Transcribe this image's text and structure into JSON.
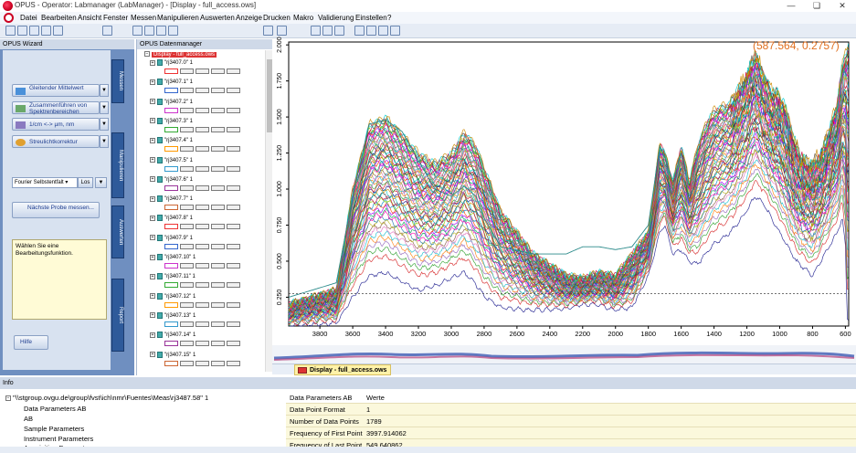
{
  "window": {
    "title": "OPUS - Operator: Labmanager  (LabManager) - [Display - full_access.ows]"
  },
  "menubar": {
    "items": [
      "Datei",
      "Bearbeiten",
      "Ansicht",
      "Fenster",
      "Messen",
      "Manipulieren",
      "Auswerten",
      "Anzeige",
      "Drucken",
      "Makro",
      "Validierung",
      "Einstellen",
      "?"
    ]
  },
  "wizard": {
    "title": "OPUS Wizard",
    "buttons": [
      {
        "label": "Gleitender Mittelwert"
      },
      {
        "label": "Zusammenführen von Spektrenbereichen"
      },
      {
        "label": "1/cm <-> µm, nm"
      },
      {
        "label": "Streulichtkorrektur"
      }
    ],
    "select_value": "Fourier Selbstentfalt",
    "los_label": "Los",
    "next_label": "Nächste Probe messen...",
    "info_text": "Wählen Sie eine Bearbeitungsfunktion.",
    "help_label": "Hilfe",
    "tabs": [
      "Messen",
      "Manipulieren",
      "Auswerten",
      "Report"
    ]
  },
  "filemgr": {
    "title": "OPUS Datenmanager",
    "root": "Display - full_access.ows",
    "items": [
      "\"rj3407.0\" 1",
      "\"rj3407.1\" 1",
      "\"rj3407.2\" 1",
      "\"rj3407.3\" 1",
      "\"rj3407.4\" 1",
      "\"rj3407.5\" 1",
      "\"rj3407.6\" 1",
      "\"rj3407.7\" 1",
      "\"rj3407.8\" 1",
      "\"rj3407.9\" 1",
      "\"rj3407.10\" 1",
      "\"rj3407.11\" 1",
      "\"rj3407.12\" 1",
      "\"rj3407.13\" 1",
      "\"rj3407.14\" 1",
      "\"rj3407.15\" 1"
    ]
  },
  "plot": {
    "cursor_readout": "(587.564, 0.2757)",
    "doc_tab": "Display - full_access.ows"
  },
  "chart_data": {
    "type": "line",
    "x_ticks": [
      3800,
      3600,
      3400,
      3200,
      3000,
      2800,
      2600,
      2400,
      2200,
      2000,
      1800,
      1600,
      1400,
      1200,
      1000,
      800,
      600
    ],
    "y_ticks": [
      "0.250",
      "0.500",
      "0.750",
      "1.000",
      "1.250",
      "1.500",
      "1.750",
      "2.000"
    ],
    "xlim": [
      3990,
      580
    ],
    "ylim": [
      0.05,
      2.02
    ],
    "reference_line_y": 0.2757,
    "series_count": 60,
    "envelope": {
      "x": [
        3990,
        3700,
        3600,
        3500,
        3400,
        3300,
        3200,
        3100,
        3000,
        2920,
        2850,
        2800,
        2700,
        2500,
        2300,
        2200,
        2100,
        2000,
        1900,
        1800,
        1730,
        1700,
        1650,
        1600,
        1550,
        1500,
        1450,
        1400,
        1300,
        1200,
        1150,
        1100,
        1050,
        1000,
        950,
        900,
        850,
        800,
        750,
        700,
        650,
        620,
        600,
        590
      ],
      "upper": [
        0.2,
        0.3,
        1.0,
        1.45,
        1.5,
        1.38,
        1.25,
        1.18,
        1.25,
        1.4,
        1.3,
        1.15,
        0.85,
        0.55,
        0.4,
        0.38,
        0.42,
        0.4,
        0.55,
        0.7,
        1.32,
        1.25,
        1.05,
        1.3,
        1.05,
        1.3,
        1.45,
        1.55,
        1.6,
        1.8,
        1.95,
        1.8,
        1.7,
        1.65,
        1.5,
        1.3,
        1.2,
        1.18,
        1.25,
        1.4,
        1.6,
        1.85,
        1.95,
        2.0
      ],
      "lower": [
        0.05,
        0.07,
        0.25,
        0.4,
        0.42,
        0.36,
        0.3,
        0.33,
        0.38,
        0.42,
        0.34,
        0.26,
        0.18,
        0.16,
        0.17,
        0.2,
        0.2,
        0.16,
        0.18,
        0.4,
        0.7,
        0.75,
        0.55,
        0.58,
        0.5,
        0.48,
        0.55,
        0.62,
        0.7,
        0.85,
        0.95,
        0.9,
        0.8,
        0.7,
        0.6,
        0.5,
        0.45,
        0.4,
        0.5,
        0.6,
        0.7,
        0.8,
        0.6,
        0.1
      ]
    },
    "outlier": {
      "x": [
        3990,
        3700,
        3600,
        3500,
        3400,
        3300,
        3200,
        3100,
        3000,
        2920,
        2850,
        2800,
        2700,
        2500,
        2300,
        2200,
        2100,
        2000,
        1900,
        1800,
        1730,
        1700,
        1650,
        1600
      ],
      "y": [
        0.25,
        0.35,
        0.95,
        1.45,
        1.48,
        1.4,
        1.2,
        1.0,
        0.95,
        1.02,
        0.95,
        0.8,
        0.6,
        0.55,
        0.55,
        0.6,
        0.6,
        0.58,
        0.6,
        0.75,
        1.3,
        1.22,
        1.05,
        1.25
      ]
    }
  },
  "info": {
    "title": "Info",
    "path": "\"\\\\stgroup.ovgu.de\\group\\fvst\\ich\\nmr\\Fuentes\\Meas\\rj3487.58\" 1",
    "tree": [
      "Data Parameters AB",
      "AB",
      "Sample Parameters",
      "Instrument Parameters",
      "Acquisition Parameters"
    ],
    "grid_header": {
      "key": "Data Parameters AB",
      "value": "Werte"
    },
    "rows": [
      {
        "key": "Data Point Format",
        "value": "1"
      },
      {
        "key": "Number of Data Points",
        "value": "1789"
      },
      {
        "key": "Frequency of First Point",
        "value": "3997.914062"
      },
      {
        "key": "Frequency of Last Point",
        "value": "549.640862"
      }
    ]
  }
}
